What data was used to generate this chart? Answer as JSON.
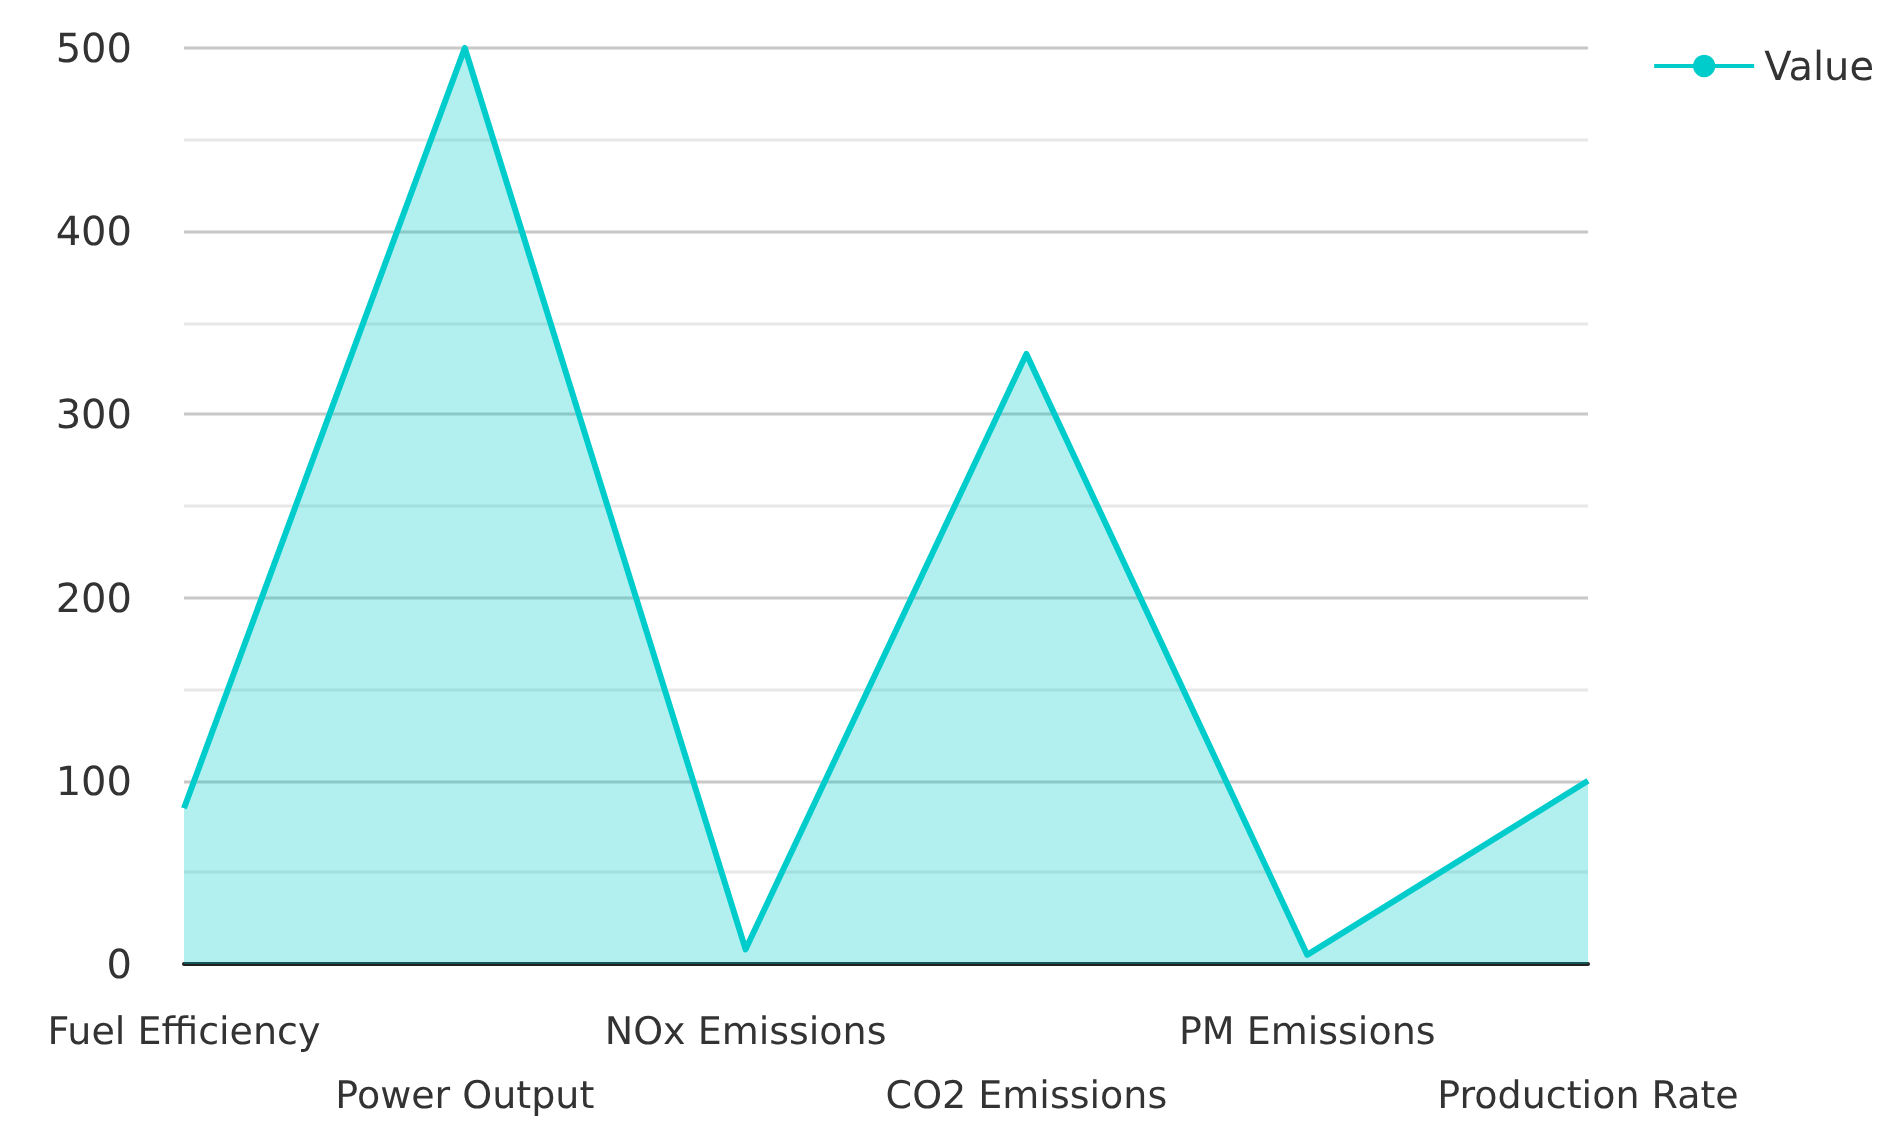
{
  "chart_data": {
    "type": "area",
    "categories": [
      "Fuel Efficiency",
      "Power Output",
      "NOx Emissions",
      "CO2 Emissions",
      "PM Emissions",
      "Production Rate"
    ],
    "series": [
      {
        "name": "Value",
        "color": "#00cccc",
        "values": [
          85,
          500,
          8,
          333,
          5,
          100
        ]
      }
    ],
    "ylim": [
      0,
      500
    ],
    "yticks": [
      0,
      100,
      200,
      300,
      400,
      500
    ],
    "grid": "y",
    "legend": "top right",
    "marker": "none"
  }
}
